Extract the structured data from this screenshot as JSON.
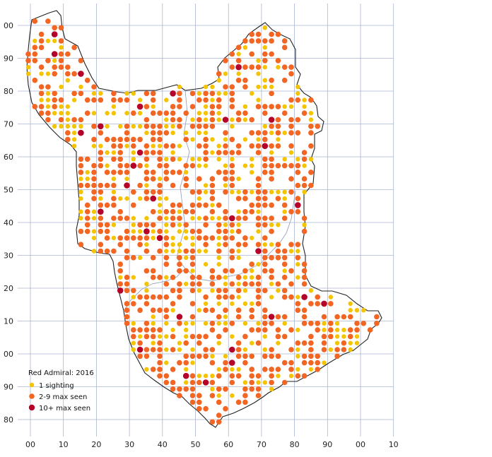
{
  "legend": {
    "title": "Red Admiral:  2016",
    "items": [
      {
        "label": "1 sighting",
        "color": "#f5c400"
      },
      {
        "label": "2-9 max seen",
        "color": "#f26522"
      },
      {
        "label": "10+ max seen",
        "color": "#b5002a"
      }
    ]
  },
  "axes": {
    "x_labels": [
      "00",
      "10",
      "20",
      "30",
      "40",
      "50",
      "60",
      "70",
      "80",
      "90",
      "00",
      "10"
    ],
    "y_labels": [
      "00",
      "90",
      "80",
      "70",
      "60",
      "50",
      "40",
      "30",
      "20",
      "10",
      "00",
      "90",
      "80"
    ]
  },
  "colors": {
    "grid": "#a9b4d1",
    "outline": "#222222",
    "inner_boundary": "#9aa3b8"
  }
}
